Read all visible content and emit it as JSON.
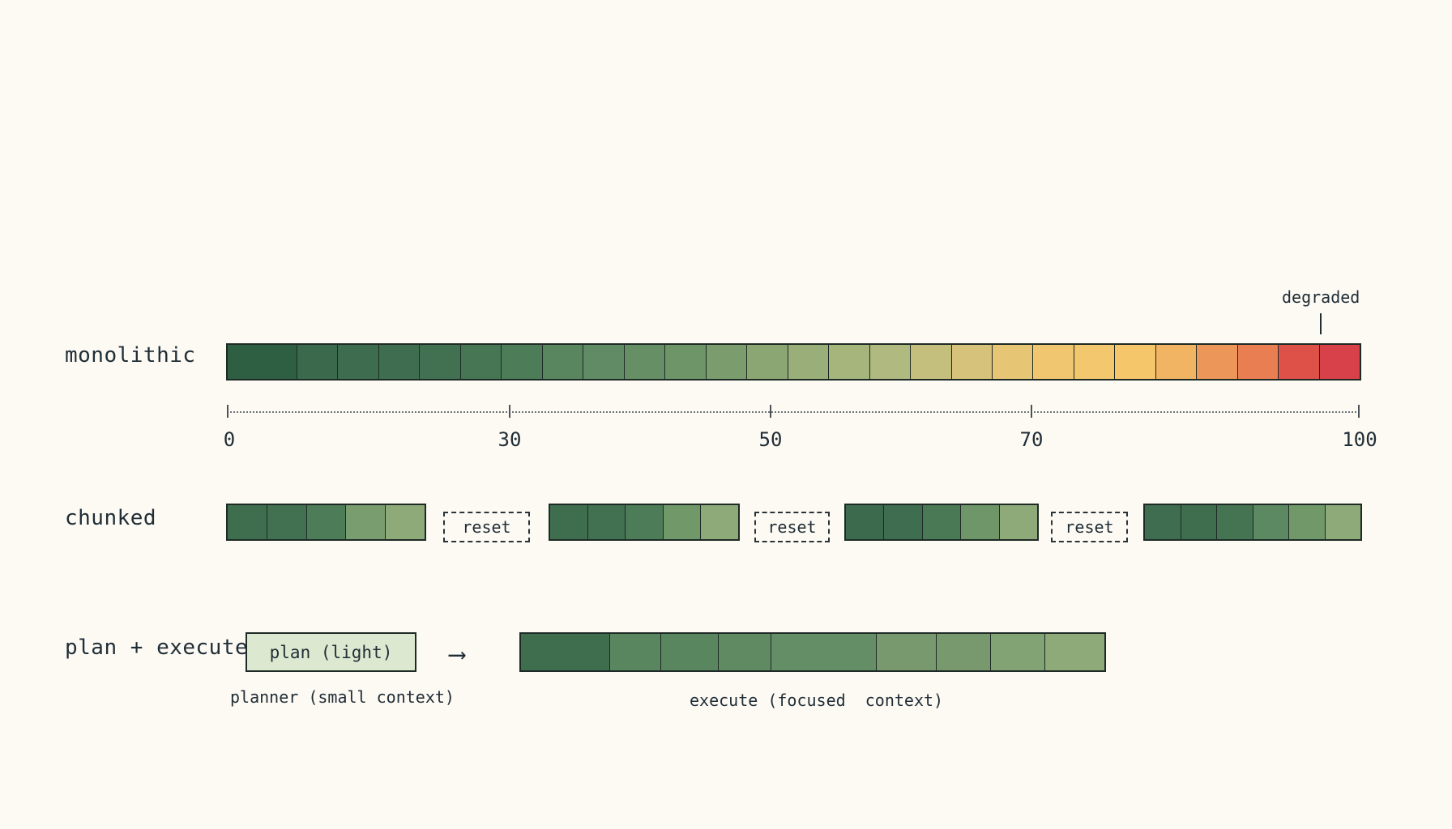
{
  "rows": {
    "monolithic": {
      "label": "monolithic",
      "cell_colors": [
        "#2f5f42",
        "#3a6a4b",
        "#3d6d4e",
        "#3e6e4f",
        "#417150",
        "#467654",
        "#4d7c58",
        "#5a865f",
        "#618b64",
        "#668f66",
        "#6e9568",
        "#7b9c6d",
        "#8ba673",
        "#9aae79",
        "#a6b57c",
        "#b0ba80",
        "#c5bf7e",
        "#d6c27a",
        "#e6c574",
        "#f0c670",
        "#f2c76d",
        "#f5c66a",
        "#f0b462",
        "#ec965a",
        "#e87e52",
        "#de5148",
        "#d8404a"
      ],
      "degraded_label": "degraded"
    },
    "chunked": {
      "label": "chunked",
      "reset_label": "reset",
      "chunks": [
        [
          "#3f6e4f",
          "#417150",
          "#4d7c58",
          "#7a9d6f",
          "#8eaa78"
        ],
        [
          "#3f6e4f",
          "#417150",
          "#4d7c58",
          "#709868",
          "#8eaa78"
        ],
        [
          "#3b6b4c",
          "#3e6e4f",
          "#4a7955",
          "#6f9668",
          "#8eaa78"
        ],
        [
          "#3e6e4f",
          "#3f6e4f",
          "#457452",
          "#5c8862",
          "#709868",
          "#8eaa78"
        ]
      ]
    },
    "plan_execute": {
      "label": "plan + execute",
      "plan_label": "plan (light)",
      "arrow": "⟶",
      "planner_caption": "planner (small context)",
      "execute_caption": "execute (focused  context)",
      "execute_colors": [
        "#3f6e4f",
        "#5a865f",
        "#5a865f",
        "#5f8a62",
        "#648e65",
        "#78996d",
        "#78996d",
        "#82a373",
        "#8eaa78"
      ]
    }
  },
  "axis": {
    "ticks": [
      "0",
      "30",
      "50",
      "70",
      "100"
    ]
  }
}
